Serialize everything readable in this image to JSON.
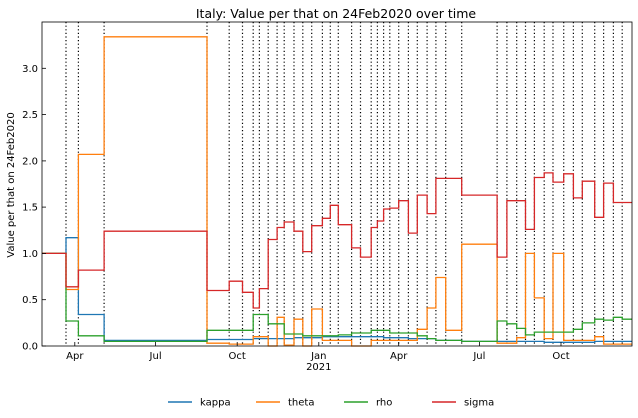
{
  "chart_data": {
    "type": "line",
    "title": "Italy: Value per that on 24Feb2020 over time",
    "ylabel": "Value per that on 24Feb2020",
    "xlabel": "",
    "x_range": [
      "2020-02-24",
      "2021-12-20"
    ],
    "ylim": [
      0,
      3.5
    ],
    "x_ticks": [
      {
        "date": "2020-04-01",
        "label": "Apr",
        "year_label": ""
      },
      {
        "date": "2020-07-01",
        "label": "Jul",
        "year_label": ""
      },
      {
        "date": "2020-10-01",
        "label": "Oct",
        "year_label": ""
      },
      {
        "date": "2021-01-01",
        "label": "Jan",
        "year_label": "2021"
      },
      {
        "date": "2021-04-01",
        "label": "Apr",
        "year_label": ""
      },
      {
        "date": "2021-07-01",
        "label": "Jul",
        "year_label": ""
      },
      {
        "date": "2021-10-01",
        "label": "Oct",
        "year_label": ""
      }
    ],
    "y_ticks": [
      {
        "value": 0,
        "label": "0.0"
      },
      {
        "value": 0.5,
        "label": "0.5"
      },
      {
        "value": 1.0,
        "label": "1.0"
      },
      {
        "value": 1.5,
        "label": "1.5"
      },
      {
        "value": 2.0,
        "label": "2.0"
      },
      {
        "value": 2.5,
        "label": "2.5"
      },
      {
        "value": 3.0,
        "label": "3.0"
      }
    ],
    "vlines": [
      "2020-03-22",
      "2020-04-05",
      "2020-05-04",
      "2020-08-28",
      "2020-09-22",
      "2020-10-07",
      "2020-10-19",
      "2020-10-26",
      "2020-11-05",
      "2020-11-15",
      "2020-11-23",
      "2020-12-04",
      "2020-12-14",
      "2020-12-24",
      "2021-01-05",
      "2021-01-14",
      "2021-01-23",
      "2021-02-07",
      "2021-02-17",
      "2021-03-01",
      "2021-03-08",
      "2021-03-15",
      "2021-03-22",
      "2021-04-01",
      "2021-04-12",
      "2021-04-22",
      "2021-05-03",
      "2021-05-13",
      "2021-05-24",
      "2021-06-11",
      "2021-07-21",
      "2021-08-01",
      "2021-08-12",
      "2021-08-22",
      "2021-09-01",
      "2021-09-12",
      "2021-09-22",
      "2021-10-04",
      "2021-10-15",
      "2021-10-25",
      "2021-11-08",
      "2021-11-18",
      "2021-11-29",
      "2021-12-09"
    ],
    "legend_position": "bottom-center",
    "series": [
      {
        "name": "kappa",
        "color": "#1f77b4",
        "steps": [
          [
            "2020-02-24",
            1.0
          ],
          [
            "2020-03-22",
            1.17
          ],
          [
            "2020-04-05",
            0.34
          ],
          [
            "2020-05-04",
            0.06
          ],
          [
            "2020-08-28",
            0.07
          ],
          [
            "2020-10-19",
            0.08
          ],
          [
            "2020-12-04",
            0.09
          ],
          [
            "2021-01-05",
            0.1
          ],
          [
            "2021-03-15",
            0.09
          ],
          [
            "2021-04-12",
            0.08
          ],
          [
            "2021-05-13",
            0.06
          ],
          [
            "2021-06-11",
            0.05
          ],
          [
            "2021-08-01",
            0.05
          ],
          [
            "2021-09-12",
            0.04
          ],
          [
            "2021-11-08",
            0.05
          ],
          [
            "2021-12-20",
            0.05
          ]
        ]
      },
      {
        "name": "theta",
        "color": "#ff7f0e",
        "steps": [
          [
            "2020-02-24",
            1.0
          ],
          [
            "2020-03-22",
            0.61
          ],
          [
            "2020-04-05",
            2.07
          ],
          [
            "2020-05-04",
            3.34
          ],
          [
            "2020-08-28",
            0.03
          ],
          [
            "2020-09-22",
            0.02
          ],
          [
            "2020-10-19",
            0.1
          ],
          [
            "2020-11-05",
            0.0
          ],
          [
            "2020-11-15",
            0.31
          ],
          [
            "2020-11-23",
            0.01
          ],
          [
            "2020-12-04",
            0.29
          ],
          [
            "2020-12-14",
            0.0
          ],
          [
            "2020-12-24",
            0.4
          ],
          [
            "2021-01-05",
            0.06
          ],
          [
            "2021-02-07",
            0.0
          ],
          [
            "2021-03-01",
            0.06
          ],
          [
            "2021-04-22",
            0.18
          ],
          [
            "2021-05-03",
            0.41
          ],
          [
            "2021-05-13",
            0.74
          ],
          [
            "2021-05-24",
            0.17
          ],
          [
            "2021-06-11",
            1.1
          ],
          [
            "2021-07-21",
            0.03
          ],
          [
            "2021-08-12",
            0.09
          ],
          [
            "2021-08-22",
            1.0
          ],
          [
            "2021-09-01",
            0.52
          ],
          [
            "2021-09-12",
            0.08
          ],
          [
            "2021-09-22",
            1.0
          ],
          [
            "2021-10-04",
            0.06
          ],
          [
            "2021-11-08",
            0.1
          ],
          [
            "2021-11-18",
            0.02
          ],
          [
            "2021-12-20",
            0.02
          ]
        ]
      },
      {
        "name": "rho",
        "color": "#2ca02c",
        "steps": [
          [
            "2020-02-24",
            1.0
          ],
          [
            "2020-03-22",
            0.27
          ],
          [
            "2020-04-05",
            0.11
          ],
          [
            "2020-05-04",
            0.05
          ],
          [
            "2020-08-28",
            0.17
          ],
          [
            "2020-10-19",
            0.34
          ],
          [
            "2020-11-05",
            0.24
          ],
          [
            "2020-11-23",
            0.13
          ],
          [
            "2020-12-14",
            0.11
          ],
          [
            "2021-01-23",
            0.12
          ],
          [
            "2021-02-07",
            0.14
          ],
          [
            "2021-03-01",
            0.17
          ],
          [
            "2021-03-22",
            0.14
          ],
          [
            "2021-04-22",
            0.11
          ],
          [
            "2021-05-03",
            0.08
          ],
          [
            "2021-05-13",
            0.06
          ],
          [
            "2021-06-11",
            0.05
          ],
          [
            "2021-07-21",
            0.27
          ],
          [
            "2021-08-01",
            0.24
          ],
          [
            "2021-08-12",
            0.19
          ],
          [
            "2021-08-22",
            0.12
          ],
          [
            "2021-09-01",
            0.15
          ],
          [
            "2021-10-15",
            0.18
          ],
          [
            "2021-10-25",
            0.25
          ],
          [
            "2021-11-08",
            0.29
          ],
          [
            "2021-11-18",
            0.28
          ],
          [
            "2021-11-29",
            0.31
          ],
          [
            "2021-12-09",
            0.29
          ],
          [
            "2021-12-20",
            0.29
          ]
        ]
      },
      {
        "name": "sigma",
        "color": "#d62728",
        "steps": [
          [
            "2020-02-24",
            1.0
          ],
          [
            "2020-03-22",
            0.64
          ],
          [
            "2020-04-05",
            0.82
          ],
          [
            "2020-05-04",
            1.24
          ],
          [
            "2020-08-28",
            0.6
          ],
          [
            "2020-09-22",
            0.7
          ],
          [
            "2020-10-07",
            0.58
          ],
          [
            "2020-10-19",
            0.41
          ],
          [
            "2020-10-26",
            0.62
          ],
          [
            "2020-11-05",
            1.15
          ],
          [
            "2020-11-15",
            1.28
          ],
          [
            "2020-11-23",
            1.34
          ],
          [
            "2020-12-04",
            1.24
          ],
          [
            "2020-12-14",
            1.02
          ],
          [
            "2020-12-24",
            1.3
          ],
          [
            "2021-01-05",
            1.38
          ],
          [
            "2021-01-14",
            1.52
          ],
          [
            "2021-01-23",
            1.31
          ],
          [
            "2021-02-07",
            1.06
          ],
          [
            "2021-02-17",
            0.96
          ],
          [
            "2021-03-01",
            1.28
          ],
          [
            "2021-03-08",
            1.35
          ],
          [
            "2021-03-15",
            1.48
          ],
          [
            "2021-03-22",
            1.49
          ],
          [
            "2021-04-01",
            1.57
          ],
          [
            "2021-04-12",
            1.22
          ],
          [
            "2021-04-22",
            1.63
          ],
          [
            "2021-05-03",
            1.43
          ],
          [
            "2021-05-13",
            1.81
          ],
          [
            "2021-06-11",
            1.63
          ],
          [
            "2021-07-21",
            0.96
          ],
          [
            "2021-08-01",
            1.57
          ],
          [
            "2021-08-22",
            1.26
          ],
          [
            "2021-09-01",
            1.82
          ],
          [
            "2021-09-12",
            1.87
          ],
          [
            "2021-09-22",
            1.77
          ],
          [
            "2021-10-04",
            1.86
          ],
          [
            "2021-10-15",
            1.6
          ],
          [
            "2021-10-25",
            1.78
          ],
          [
            "2021-11-08",
            1.39
          ],
          [
            "2021-11-18",
            1.76
          ],
          [
            "2021-11-29",
            1.55
          ],
          [
            "2021-12-20",
            1.55
          ]
        ]
      }
    ]
  }
}
